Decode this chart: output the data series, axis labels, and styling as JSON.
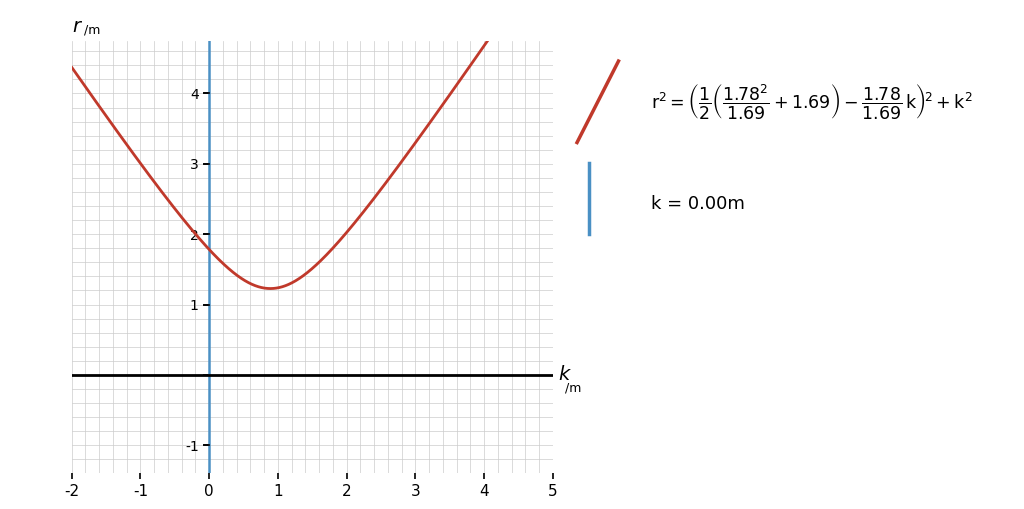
{
  "a": 1.78,
  "b": 1.69,
  "k_value": 0.0,
  "x_min": -2,
  "x_max": 5,
  "y_min": -1.4,
  "y_max": 4.75,
  "x_ticks": [
    -2,
    -1,
    0,
    1,
    2,
    3,
    4,
    5
  ],
  "y_ticks": [
    -1,
    1,
    2,
    3,
    4
  ],
  "curve_color": "#c0392b",
  "vline_color": "#4a90c4",
  "grid_color": "#cccccc",
  "background_color": "#ffffff",
  "axis_label_x": "k",
  "axis_label_x_sub": "/m",
  "axis_label_y": "r",
  "axis_label_y_sub": "/m",
  "legend_k_label": "k = 0.00m",
  "curve_linewidth": 2.0,
  "vline_linewidth": 1.8
}
